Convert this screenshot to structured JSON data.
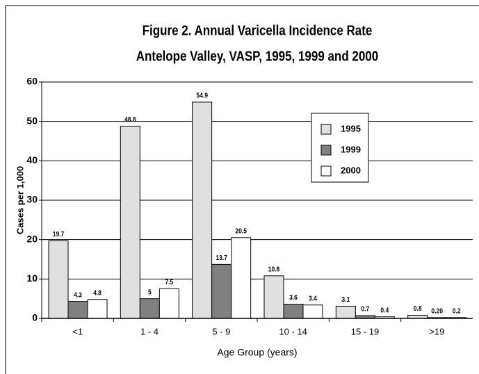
{
  "chart_data": {
    "type": "bar",
    "title": "Figure 2.  Annual Varicella Incidence Rate",
    "subtitle": "Antelope Valley, VASP, 1995, 1999 and 2000",
    "x_label": "Age Group (years)",
    "y_label": "Cases per 1,000",
    "categories": [
      "<1",
      "1 - 4",
      "5 - 9",
      "10 - 14",
      "15 - 19",
      ">19"
    ],
    "series": [
      {
        "name": "1995",
        "color": "#e0e0e0",
        "values": [
          19.7,
          48.8,
          54.9,
          10.8,
          3.1,
          0.8
        ]
      },
      {
        "name": "1999",
        "color": "#808080",
        "values": [
          4.3,
          5,
          13.7,
          3.6,
          0.7,
          0.2
        ],
        "value_labels": [
          "4.3",
          "5",
          "13.7",
          "3.6",
          "0.7",
          "0.20"
        ]
      },
      {
        "name": "2000",
        "color": "#ffffff",
        "values": [
          4.8,
          7.5,
          20.5,
          3.4,
          0.4,
          0.2
        ]
      }
    ],
    "ylim": [
      0,
      60
    ],
    "yticks": [
      0,
      10,
      20,
      30,
      40,
      50,
      60
    ],
    "grid": true,
    "legend": "upper right"
  }
}
